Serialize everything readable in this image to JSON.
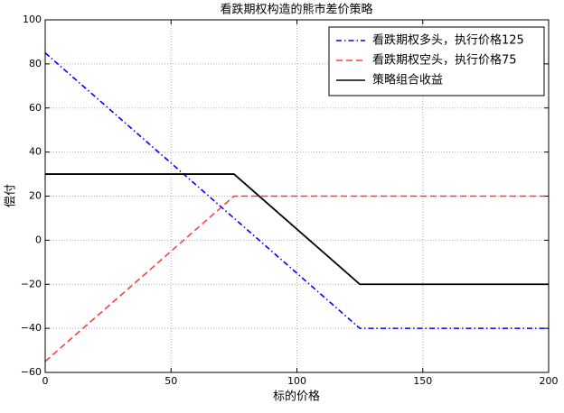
{
  "chart_data": {
    "type": "line",
    "title": "看跌期权构造的熊市差价策略",
    "xlabel": "标的价格",
    "ylabel": "偿付",
    "series": [
      {
        "name": "看跌期权多头，执行价格125",
        "color": "#0000ff",
        "style": "dashdot",
        "x": [
          0,
          125,
          200
        ],
        "values": [
          85,
          -40,
          -40
        ]
      },
      {
        "name": "看跌期权空头，执行价格75",
        "color": "#ff0000",
        "style": "dashed",
        "x": [
          0,
          75,
          200
        ],
        "values": [
          -55,
          20,
          20
        ]
      },
      {
        "name": "策略组合收益",
        "color": "#000000",
        "style": "solid",
        "x": [
          0,
          75,
          125,
          200
        ],
        "values": [
          30,
          30,
          -20,
          -20
        ]
      }
    ],
    "xlim": [
      0,
      200
    ],
    "xticks": [
      0,
      50,
      100,
      150,
      200
    ],
    "ylim": [
      -60,
      100
    ],
    "yticks": [
      {
        "value": -60,
        "label": "−60"
      },
      {
        "value": -40,
        "label": "−40"
      },
      {
        "value": -20,
        "label": "−20"
      },
      0,
      20,
      40,
      60,
      80,
      100
    ],
    "grid": true,
    "legend": "upper right"
  }
}
